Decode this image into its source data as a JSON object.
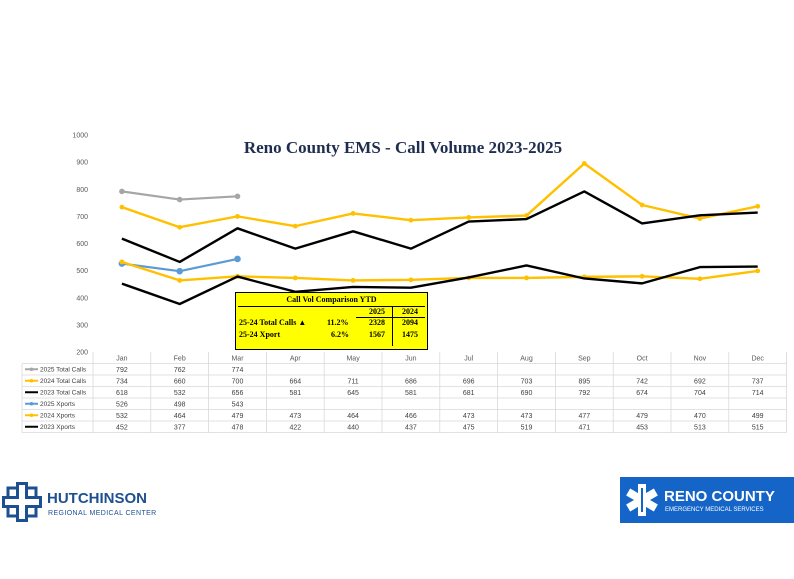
{
  "chart_data": {
    "type": "line",
    "title": "Reno County EMS - Call Volume 2023-2025",
    "ylim": [
      200,
      1000
    ],
    "y_ticks": [
      "1000",
      "900",
      "800",
      "700",
      "600",
      "500",
      "400",
      "300",
      "200"
    ],
    "categories": [
      "Jan",
      "Feb",
      "Mar",
      "Apr",
      "May",
      "Jun",
      "Jul",
      "Aug",
      "Sep",
      "Oct",
      "Nov",
      "Dec"
    ],
    "series": [
      {
        "name": "2025 Total Calls",
        "color": "#a6a6a6",
        "values": [
          792,
          762,
          774,
          null,
          null,
          null,
          null,
          null,
          null,
          null,
          null,
          null
        ],
        "display": [
          "792",
          "762",
          "774",
          "",
          "",
          "",
          "",
          "",
          "",
          "",
          "",
          ""
        ]
      },
      {
        "name": "2024 Total Calls",
        "color": "#ffc000",
        "values": [
          734,
          660,
          700,
          664,
          711,
          686,
          696,
          703,
          895,
          742,
          692,
          737
        ],
        "display": [
          "734",
          "660",
          "700",
          "664",
          "711",
          "686",
          "696",
          "703",
          "895",
          "742",
          "692",
          "737"
        ]
      },
      {
        "name": "2023 Total Calls",
        "color": "#000000",
        "values": [
          618,
          532,
          656,
          581,
          645,
          581,
          681,
          690,
          792,
          674,
          704,
          714
        ],
        "display": [
          "618",
          "532",
          "656",
          "581",
          "645",
          "581",
          "681",
          "690",
          "792",
          "674",
          "704",
          "714"
        ]
      },
      {
        "name": "2025 Xports",
        "color": "#5b9bd5",
        "values": [
          526,
          498,
          543,
          null,
          null,
          null,
          null,
          null,
          null,
          null,
          null,
          null
        ],
        "display": [
          "526",
          "498",
          "543",
          "",
          "",
          "",
          "",
          "",
          "",
          "",
          "",
          ""
        ]
      },
      {
        "name": "2024 Xports",
        "color": "#ffc000",
        "values": [
          532,
          464,
          479,
          473,
          464,
          466,
          473,
          473,
          477,
          479,
          470,
          499
        ],
        "display": [
          "532",
          "464",
          "479",
          "473",
          "464",
          "466",
          "473",
          "473",
          "477",
          "479",
          "470",
          "499"
        ]
      },
      {
        "name": "2023 Xports",
        "color": "#000000",
        "values": [
          452,
          377,
          478,
          422,
          440,
          437,
          475,
          519,
          471,
          453,
          513,
          515
        ],
        "display": [
          "452",
          "377",
          "478",
          "422",
          "440",
          "437",
          "475",
          "519",
          "471",
          "453",
          "513",
          "515"
        ]
      }
    ]
  },
  "ytd_box": {
    "title": "Call Vol Comparison YTD",
    "col_2025": "2025",
    "col_2024": "2024",
    "row1_label": "25-24 Total Calls ▲",
    "row1_pct": "11.2%",
    "row1_2025": "2328",
    "row1_2024": "2094",
    "row2_label": "25-24 Xport",
    "row2_pct": "6.2%",
    "row2_2025": "1567",
    "row2_2024": "1475",
    "color": "#ffff00"
  },
  "logos": {
    "hutchinson_name": "HUTCHINSON",
    "hutchinson_sub": "REGIONAL MEDICAL CENTER",
    "reno_name": "RENO COUNTY",
    "reno_sub": "EMERGENCY MEDICAL SERVICES",
    "hutchinson_color": "#1d4f91",
    "reno_color": "#1565c8"
  }
}
